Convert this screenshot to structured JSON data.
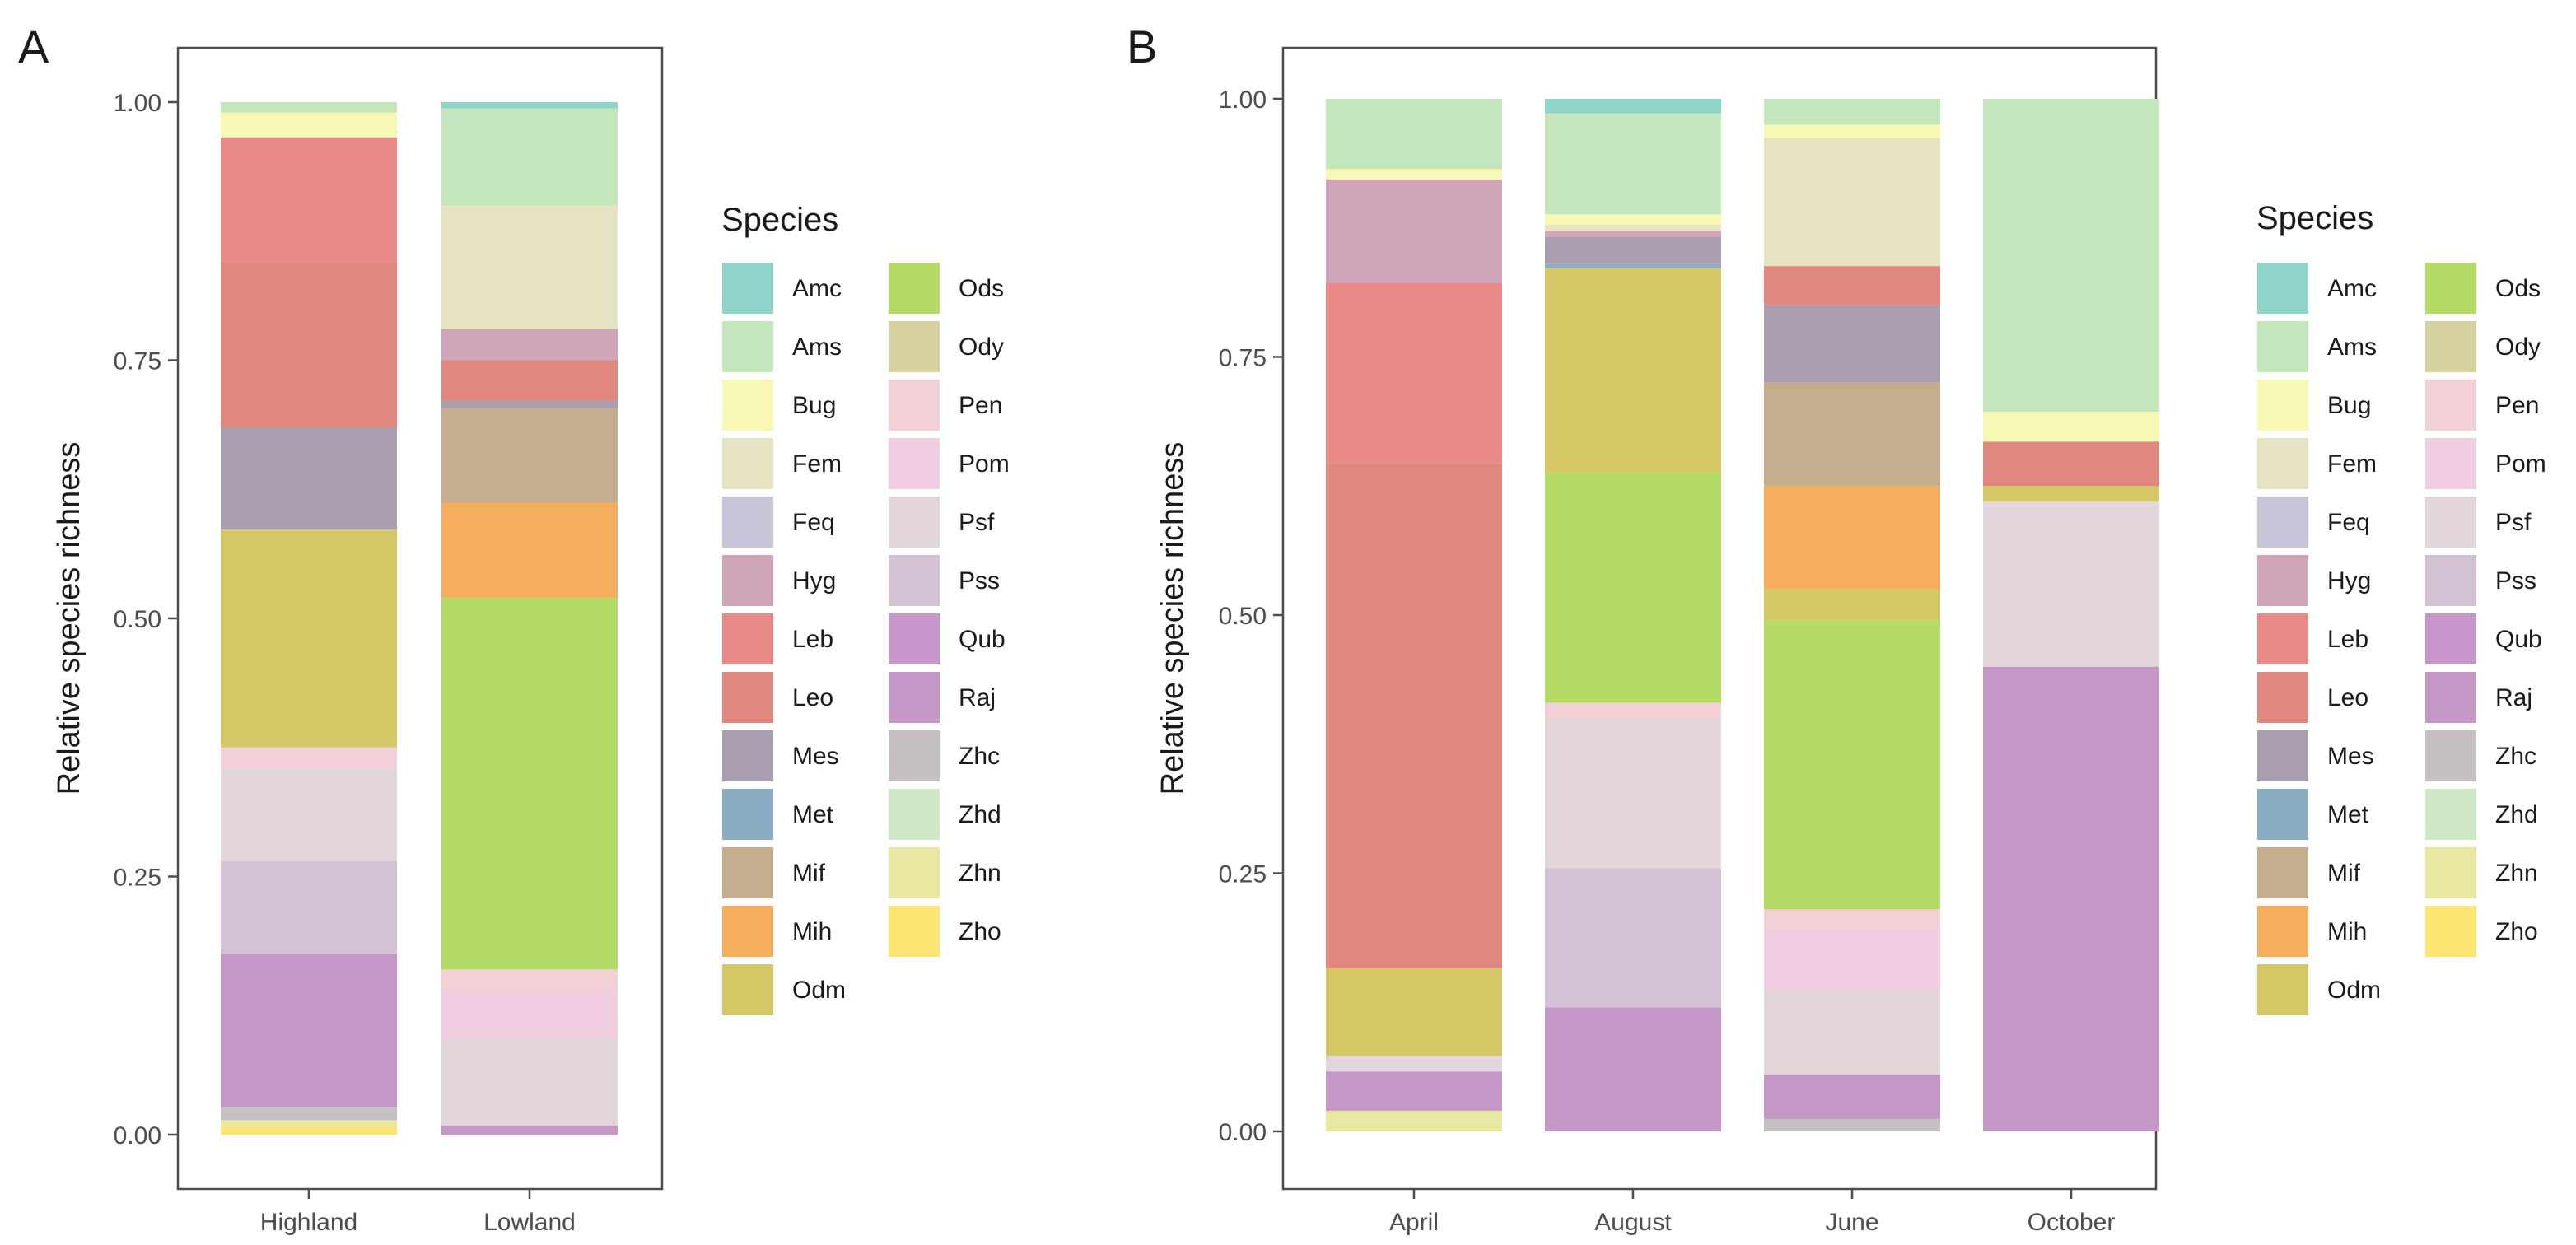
{
  "chart_data": [
    {
      "panel_label": "A",
      "type": "bar",
      "stacked": true,
      "ylabel": "Relative species richness",
      "xlabel": "",
      "ylim": [
        0,
        1
      ],
      "yticks": [
        "0.00",
        "0.25",
        "0.50",
        "0.75",
        "1.00"
      ],
      "grid": false,
      "legend_position": "right",
      "categories": [
        "Highland",
        "Lowland"
      ],
      "stack": [
        {
          "category": "Highland",
          "segments": [
            {
              "species": "Zho",
              "from": 0.0,
              "to": 0.008
            },
            {
              "species": "Zhn",
              "from": 0.008,
              "to": 0.014
            },
            {
              "species": "Zhc",
              "from": 0.014,
              "to": 0.027
            },
            {
              "species": "Raj",
              "from": 0.027,
              "to": 0.175
            },
            {
              "species": "Pss",
              "from": 0.175,
              "to": 0.265
            },
            {
              "species": "Psf",
              "from": 0.265,
              "to": 0.355
            },
            {
              "species": "Pen",
              "from": 0.355,
              "to": 0.375
            },
            {
              "species": "Odm",
              "from": 0.375,
              "to": 0.586
            },
            {
              "species": "Mes",
              "from": 0.586,
              "to": 0.685
            },
            {
              "species": "Leo",
              "from": 0.685,
              "to": 0.845
            },
            {
              "species": "Leb",
              "from": 0.845,
              "to": 0.966
            },
            {
              "species": "Bug",
              "from": 0.966,
              "to": 0.99
            },
            {
              "species": "Ams",
              "from": 0.99,
              "to": 1.0
            }
          ]
        },
        {
          "category": "Lowland",
          "segments": [
            {
              "species": "Raj",
              "from": 0.0,
              "to": 0.009
            },
            {
              "species": "Psf",
              "from": 0.009,
              "to": 0.093
            },
            {
              "species": "Pom",
              "from": 0.093,
              "to": 0.14
            },
            {
              "species": "Pen",
              "from": 0.14,
              "to": 0.16
            },
            {
              "species": "Ods",
              "from": 0.16,
              "to": 0.52
            },
            {
              "species": "Mih",
              "from": 0.52,
              "to": 0.612
            },
            {
              "species": "Mif",
              "from": 0.612,
              "to": 0.703
            },
            {
              "species": "Mes",
              "from": 0.703,
              "to": 0.711
            },
            {
              "species": "Leo",
              "from": 0.711,
              "to": 0.75
            },
            {
              "species": "Hyg",
              "from": 0.75,
              "to": 0.78
            },
            {
              "species": "Fem",
              "from": 0.78,
              "to": 0.9
            },
            {
              "species": "Ams",
              "from": 0.9,
              "to": 0.994
            },
            {
              "species": "Amc",
              "from": 0.994,
              "to": 1.0
            }
          ]
        }
      ]
    },
    {
      "panel_label": "B",
      "type": "bar",
      "stacked": true,
      "ylabel": "Relative species richness",
      "xlabel": "",
      "ylim": [
        0,
        1
      ],
      "yticks": [
        "0.00",
        "0.25",
        "0.50",
        "0.75",
        "1.00"
      ],
      "grid": false,
      "legend_position": "right",
      "categories": [
        "April",
        "August",
        "June",
        "October"
      ],
      "stack": [
        {
          "category": "April",
          "segments": [
            {
              "species": "Zhn",
              "from": 0.0,
              "to": 0.02
            },
            {
              "species": "Raj",
              "from": 0.02,
              "to": 0.058
            },
            {
              "species": "Psf",
              "from": 0.058,
              "to": 0.073
            },
            {
              "species": "Odm",
              "from": 0.073,
              "to": 0.158
            },
            {
              "species": "Leo",
              "from": 0.158,
              "to": 0.646
            },
            {
              "species": "Leb",
              "from": 0.646,
              "to": 0.822
            },
            {
              "species": "Hyg",
              "from": 0.822,
              "to": 0.922
            },
            {
              "species": "Bug",
              "from": 0.922,
              "to": 0.932
            },
            {
              "species": "Ams",
              "from": 0.932,
              "to": 1.0
            }
          ]
        },
        {
          "category": "August",
          "segments": [
            {
              "species": "Raj",
              "from": 0.0,
              "to": 0.12
            },
            {
              "species": "Pss",
              "from": 0.12,
              "to": 0.255
            },
            {
              "species": "Psf",
              "from": 0.255,
              "to": 0.4
            },
            {
              "species": "Pen",
              "from": 0.4,
              "to": 0.415
            },
            {
              "species": "Ods",
              "from": 0.415,
              "to": 0.638
            },
            {
              "species": "Odm",
              "from": 0.638,
              "to": 0.836
            },
            {
              "species": "Met",
              "from": 0.836,
              "to": 0.84
            },
            {
              "species": "Mes",
              "from": 0.84,
              "to": 0.866
            },
            {
              "species": "Hyg",
              "from": 0.866,
              "to": 0.872
            },
            {
              "species": "Fem",
              "from": 0.872,
              "to": 0.878
            },
            {
              "species": "Bug",
              "from": 0.878,
              "to": 0.888
            },
            {
              "species": "Ams",
              "from": 0.888,
              "to": 0.986
            },
            {
              "species": "Amc",
              "from": 0.986,
              "to": 1.0
            }
          ]
        },
        {
          "category": "June",
          "segments": [
            {
              "species": "Zhc",
              "from": 0.0,
              "to": 0.012
            },
            {
              "species": "Raj",
              "from": 0.012,
              "to": 0.055
            },
            {
              "species": "Psf",
              "from": 0.055,
              "to": 0.137
            },
            {
              "species": "Pom",
              "from": 0.137,
              "to": 0.197
            },
            {
              "species": "Pen",
              "from": 0.197,
              "to": 0.215
            },
            {
              "species": "Ods",
              "from": 0.215,
              "to": 0.495
            },
            {
              "species": "Odm",
              "from": 0.495,
              "to": 0.525
            },
            {
              "species": "Mih",
              "from": 0.525,
              "to": 0.625
            },
            {
              "species": "Mif",
              "from": 0.625,
              "to": 0.725
            },
            {
              "species": "Mes",
              "from": 0.725,
              "to": 0.8
            },
            {
              "species": "Leo",
              "from": 0.8,
              "to": 0.838
            },
            {
              "species": "Fem",
              "from": 0.838,
              "to": 0.962
            },
            {
              "species": "Bug",
              "from": 0.962,
              "to": 0.975
            },
            {
              "species": "Ams",
              "from": 0.975,
              "to": 1.0
            }
          ]
        },
        {
          "category": "October",
          "segments": [
            {
              "species": "Raj",
              "from": 0.0,
              "to": 0.45
            },
            {
              "species": "Psf",
              "from": 0.45,
              "to": 0.61
            },
            {
              "species": "Odm",
              "from": 0.61,
              "to": 0.625
            },
            {
              "species": "Leo",
              "from": 0.625,
              "to": 0.668
            },
            {
              "species": "Bug",
              "from": 0.668,
              "to": 0.697
            },
            {
              "species": "Ams",
              "from": 0.697,
              "to": 1.0
            }
          ]
        }
      ]
    }
  ],
  "legend": {
    "title": "Species",
    "columns": [
      [
        "Amc",
        "Ams",
        "Bug",
        "Fem",
        "Feq",
        "Hyg",
        "Leb",
        "Leo",
        "Mes",
        "Met",
        "Mif",
        "Mih",
        "Odm"
      ],
      [
        "Ods",
        "Ody",
        "Pen",
        "Pom",
        "Psf",
        "Pss",
        "Qub",
        "Raj",
        "Zhc",
        "Zhd",
        "Zhn",
        "Zho"
      ]
    ],
    "colors": {
      "Amc": "#8fd4c8",
      "Ams": "#c3e6bd",
      "Bug": "#f6f8b3",
      "Fem": "#e5e3c1",
      "Feq": "#c7c4d7",
      "Hyg": "#d1a5b9",
      "Leb": "#ea8a88",
      "Leo": "#e0877f",
      "Mes": "#a99eaf",
      "Met": "#8aacc3",
      "Mif": "#c6ad8d",
      "Mih": "#f5ae5e",
      "Odm": "#d5c765",
      "Ods": "#b4db66",
      "Ody": "#d5d29f",
      "Pen": "#f3cfd6",
      "Pom": "#f0cde0",
      "Psf": "#e2d6db",
      "Pss": "#d3c1d4",
      "Qub": "#c995cd",
      "Raj": "#c497c7",
      "Zhc": "#c6c1c0",
      "Zhd": "#cfe8c8",
      "Zhn": "#e8e8a2",
      "Zho": "#fde572"
    }
  }
}
